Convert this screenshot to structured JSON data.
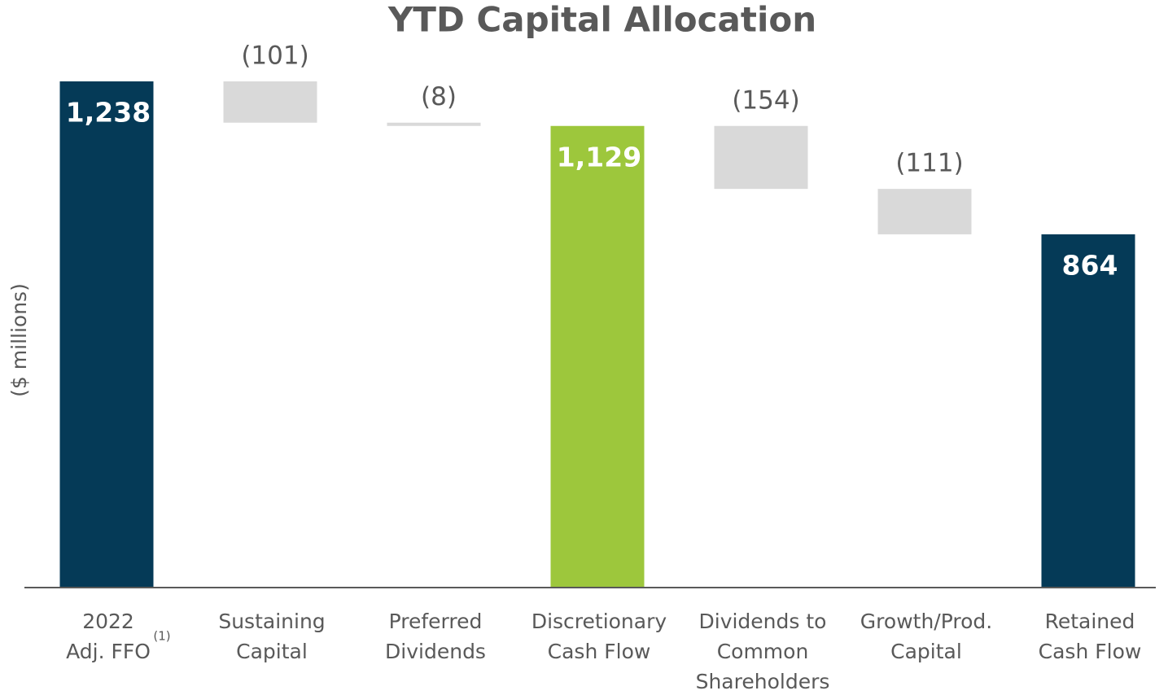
{
  "chart_data": {
    "type": "waterfall",
    "title": "YTD Capital Allocation",
    "y_axis_label": "($ millions)",
    "categories": [
      [
        "2022",
        "Adj. FFO"
      ],
      [
        "Sustaining",
        "Capital"
      ],
      [
        "Preferred",
        "Dividends"
      ],
      [
        "Discretionary",
        "Cash Flow"
      ],
      [
        "Dividends to",
        "Common",
        "Shareholders"
      ],
      [
        "Growth/Prod.",
        "Capital"
      ],
      [
        "Retained",
        "Cash Flow"
      ]
    ],
    "footnote_marker": "(1)",
    "values": [
      1238,
      -101,
      -8,
      1129,
      -154,
      -111,
      864
    ],
    "value_labels": [
      "1,238",
      "(101)",
      "(8)",
      "1,129",
      "(154)",
      "(111)",
      "864"
    ],
    "colors": [
      "#053a57",
      "#d9d9d9",
      "#d9d9d9",
      "#9dc73c",
      "#d9d9d9",
      "#d9d9d9",
      "#053a57"
    ],
    "ylim": [
      0,
      1400
    ]
  }
}
